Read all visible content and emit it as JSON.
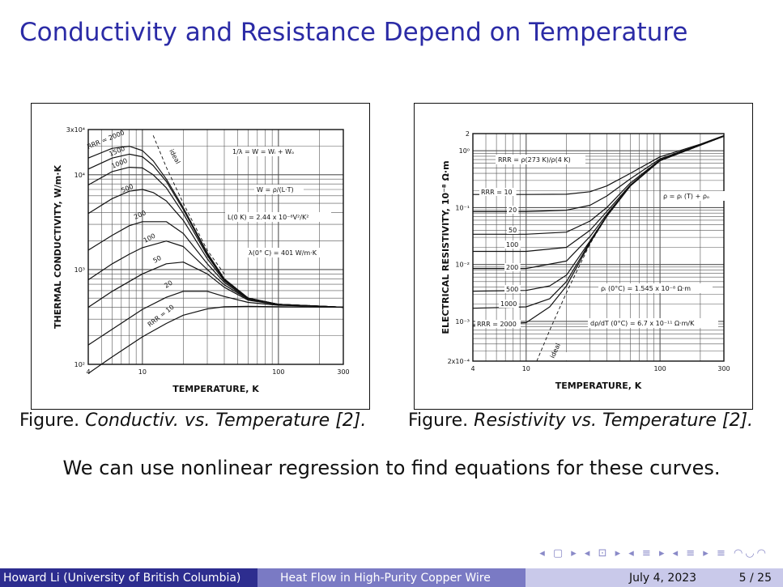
{
  "slide": {
    "title": "Conductivity and Resistance Depend on Temperature",
    "caption_left_prefix": "Figure.",
    "caption_left_text": "Conductiv. vs. Temperature [2].",
    "caption_right_prefix": "Figure.",
    "caption_right_text": "Resistivity vs. Temperature [2].",
    "body": "We can use nonlinear regression to find equations for these curves."
  },
  "footer": {
    "author": "Howard Li (University of British Columbia)",
    "talk": "Heat Flow in High-Purity Copper Wire",
    "date": "July 4, 2023",
    "page": "5 / 25"
  },
  "nav_symbols": "◂ ▢ ▸ ◂ ⊡ ▸ ◂ ≡ ▸ ◂ ≡ ▸ ≡ ◠◡◠",
  "colors": {
    "title": "#2b2ba6",
    "footer_dark": "#2d2d8f",
    "footer_mid": "#7a7ac4",
    "footer_light": "#c9c9ea"
  },
  "chart_data": [
    {
      "type": "line",
      "xscale": "log",
      "yscale": "log",
      "xlim": [
        4,
        300
      ],
      "ylim": [
        100,
        30000
      ],
      "xlabel": "TEMPERATURE, K",
      "ylabel": "THERMAL CONDUCTIVITY, W/m·K",
      "xticks": [
        {
          "v": 4,
          "label": "4"
        },
        {
          "v": 10,
          "label": "10"
        },
        {
          "v": 100,
          "label": "100"
        },
        {
          "v": 300,
          "label": "300"
        }
      ],
      "yticks": [
        {
          "v": 100,
          "label": "10²"
        },
        {
          "v": 1000,
          "label": "10³"
        },
        {
          "v": 10000,
          "label": "10⁴"
        },
        {
          "v": 30000,
          "label": "3x10⁴"
        }
      ],
      "annotations": [
        "1/λ = W = Wᵢ + Wₒ",
        "W = ρ/(L·T)",
        "L(0 K) = 2.44 x 10⁻⁸V²/K²",
        "λ(0° C) = 401 W/m·K"
      ],
      "series_labels": [
        "RRR = 2000",
        "1500",
        "1000",
        "500",
        "200",
        "100",
        "50",
        "20",
        "RRR = 10",
        "ideal"
      ],
      "series": [
        {
          "name": "RRR = 2000",
          "x": [
            4,
            6,
            8,
            10,
            12,
            15,
            20,
            30,
            40,
            60,
            100,
            300
          ],
          "y": [
            15000,
            19000,
            20000,
            18000,
            14000,
            9000,
            4500,
            1500,
            800,
            500,
            430,
            400
          ]
        },
        {
          "name": "1500",
          "x": [
            4,
            6,
            8,
            10,
            12,
            15,
            20,
            30,
            40,
            60,
            100,
            300
          ],
          "y": [
            11500,
            15000,
            16500,
            15500,
            12500,
            8500,
            4300,
            1450,
            790,
            500,
            430,
            400
          ]
        },
        {
          "name": "1000",
          "x": [
            4,
            6,
            8,
            10,
            12,
            15,
            20,
            30,
            40,
            60,
            100,
            300
          ],
          "y": [
            7800,
            10800,
            12000,
            11800,
            10000,
            7300,
            3900,
            1400,
            780,
            500,
            430,
            400
          ]
        },
        {
          "name": "500",
          "x": [
            4,
            6,
            8,
            10,
            12,
            15,
            20,
            30,
            40,
            60,
            100,
            300
          ],
          "y": [
            3900,
            5600,
            6700,
            7000,
            6500,
            5300,
            3300,
            1300,
            760,
            495,
            430,
            400
          ]
        },
        {
          "name": "200",
          "x": [
            4,
            6,
            8,
            10,
            15,
            20,
            30,
            40,
            60,
            100,
            300
          ],
          "y": [
            1600,
            2300,
            2900,
            3200,
            3200,
            2400,
            1150,
            730,
            490,
            430,
            400
          ]
        },
        {
          "name": "100",
          "x": [
            4,
            6,
            8,
            10,
            15,
            20,
            30,
            40,
            60,
            100,
            300
          ],
          "y": [
            780,
            1150,
            1450,
            1700,
            2000,
            1750,
            1000,
            690,
            485,
            430,
            400
          ]
        },
        {
          "name": "50",
          "x": [
            4,
            6,
            10,
            15,
            20,
            30,
            40,
            60,
            100,
            300
          ],
          "y": [
            400,
            590,
            900,
            1150,
            1200,
            900,
            650,
            475,
            425,
            400
          ]
        },
        {
          "name": "20",
          "x": [
            4,
            6,
            10,
            15,
            20,
            30,
            40,
            60,
            100,
            300
          ],
          "y": [
            160,
            235,
            380,
            510,
            590,
            590,
            520,
            450,
            420,
            400
          ]
        },
        {
          "name": "RRR = 10",
          "x": [
            4,
            6,
            10,
            15,
            20,
            30,
            40,
            60,
            100,
            300
          ],
          "y": [
            80,
            120,
            195,
            270,
            330,
            385,
            405,
            410,
            405,
            400
          ]
        },
        {
          "name": "ideal",
          "x": [
            12,
            15,
            20,
            30,
            40
          ],
          "y": [
            26000,
            12000,
            5000,
            1600,
            900
          ]
        }
      ]
    },
    {
      "type": "line",
      "xscale": "log",
      "yscale": "log",
      "xlim": [
        4,
        300
      ],
      "ylim": [
        0.0002,
        2
      ],
      "xlabel": "TEMPERATURE, K",
      "ylabel": "ELECTRICAL RESISTIVITY, 10⁻⁸ Ω·m",
      "xticks": [
        {
          "v": 4,
          "label": "4"
        },
        {
          "v": 10,
          "label": "10"
        },
        {
          "v": 100,
          "label": "100"
        },
        {
          "v": 300,
          "label": "300"
        }
      ],
      "yticks": [
        {
          "v": 2,
          "label": "2"
        },
        {
          "v": 1,
          "label": "10⁰"
        },
        {
          "v": 0.1,
          "label": "10⁻¹"
        },
        {
          "v": 0.01,
          "label": "10⁻²"
        },
        {
          "v": 0.001,
          "label": "10⁻³"
        },
        {
          "v": 0.0002,
          "label": "2x10⁻⁴"
        }
      ],
      "annotations": [
        "RRR = ρ(273 K)/ρ(4 K)",
        "ρ = ρᵢ (T) + ρₒ",
        "ρᵢ (0°C) = 1.545 x 10⁻⁸ Ω·m",
        "dρ/dT (0°C) = 6.7 x 10⁻¹¹ Ω·m/K"
      ],
      "series_labels": [
        "RRR = 10",
        "20",
        "50",
        "100",
        "200",
        "500",
        "1000",
        "RRR = 2000",
        "ideal"
      ],
      "series": [
        {
          "name": "RRR = 10",
          "x": [
            4,
            10,
            20,
            30,
            40,
            60,
            100,
            200,
            300
          ],
          "y": [
            0.17,
            0.17,
            0.172,
            0.19,
            0.24,
            0.4,
            0.78,
            1.3,
            1.85
          ]
        },
        {
          "name": "20",
          "x": [
            4,
            10,
            20,
            30,
            40,
            60,
            100,
            200,
            300
          ],
          "y": [
            0.085,
            0.085,
            0.09,
            0.11,
            0.16,
            0.32,
            0.72,
            1.28,
            1.82
          ]
        },
        {
          "name": "50",
          "x": [
            4,
            10,
            20,
            30,
            40,
            60,
            100,
            200,
            300
          ],
          "y": [
            0.034,
            0.034,
            0.037,
            0.058,
            0.1,
            0.27,
            0.69,
            1.26,
            1.8
          ]
        },
        {
          "name": "100",
          "x": [
            4,
            10,
            20,
            30,
            40,
            60,
            100,
            200,
            300
          ],
          "y": [
            0.017,
            0.017,
            0.02,
            0.04,
            0.085,
            0.25,
            0.68,
            1.25,
            1.8
          ]
        },
        {
          "name": "200",
          "x": [
            4,
            10,
            20,
            30,
            40,
            60,
            100,
            200,
            300
          ],
          "y": [
            0.0085,
            0.0085,
            0.0115,
            0.031,
            0.076,
            0.245,
            0.67,
            1.25,
            1.8
          ]
        },
        {
          "name": "500",
          "x": [
            4,
            10,
            15,
            20,
            30,
            40,
            60,
            100,
            200,
            300
          ],
          "y": [
            0.0034,
            0.0035,
            0.0042,
            0.0065,
            0.026,
            0.072,
            0.24,
            0.67,
            1.25,
            1.8
          ]
        },
        {
          "name": "1000",
          "x": [
            4,
            10,
            15,
            20,
            30,
            40,
            60,
            100,
            200,
            300
          ],
          "y": [
            0.0017,
            0.0018,
            0.0025,
            0.005,
            0.025,
            0.07,
            0.24,
            0.67,
            1.25,
            1.8
          ]
        },
        {
          "name": "RRR = 2000",
          "x": [
            4,
            10,
            15,
            20,
            30,
            40,
            60,
            100,
            200,
            300
          ],
          "y": [
            0.00085,
            0.00095,
            0.0018,
            0.0042,
            0.024,
            0.07,
            0.24,
            0.67,
            1.25,
            1.8
          ]
        },
        {
          "name": "ideal",
          "x": [
            12,
            15,
            20,
            30,
            40
          ],
          "y": [
            0.0002,
            0.0007,
            0.0032,
            0.023,
            0.07
          ]
        }
      ]
    }
  ]
}
